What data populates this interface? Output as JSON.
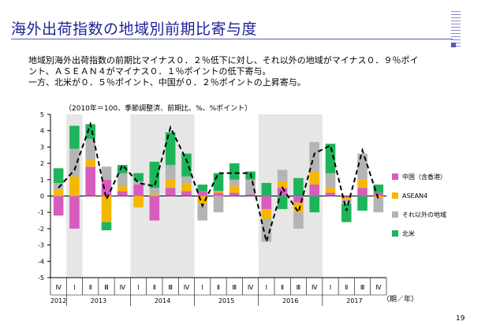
{
  "slide": {
    "title": "海外出荷指数の地域別前期比寄与度",
    "description": [
      "地域別海外出荷指数の前期比マイナス０．２％低下に対し、それ以外の地域がマイナス０．９％ポイ",
      "ント、ＡＳＥＡＮ４がマイナス０．１％ポイントの低下寄与。",
      "一方、北米が０．５％ポイント、中国が０．２％ポイントの上昇寄与。"
    ],
    "page_number": "19"
  },
  "chart_data": {
    "type": "bar",
    "stacked": true,
    "note": "（2010年＝100、季節調整済、前期比、%、%ポイント）",
    "ylim": [
      -5,
      5
    ],
    "yticks": [
      "5",
      "4",
      "3",
      "2",
      "1",
      "0",
      "-1",
      "-2",
      "-3",
      "-4",
      "-5"
    ],
    "categories": [
      "Ⅳ",
      "Ⅰ",
      "Ⅱ",
      "Ⅲ",
      "Ⅳ",
      "Ⅰ",
      "Ⅱ",
      "Ⅲ",
      "Ⅳ",
      "Ⅰ",
      "Ⅱ",
      "Ⅲ",
      "Ⅳ",
      "Ⅰ",
      "Ⅱ",
      "Ⅲ",
      "Ⅳ",
      "Ⅰ",
      "Ⅱ",
      "Ⅲ",
      "Ⅳ"
    ],
    "year_labels": [
      {
        "label": "2012",
        "start": 0,
        "end": 0
      },
      {
        "label": "2013",
        "start": 1,
        "end": 4
      },
      {
        "label": "2014",
        "start": 5,
        "end": 8
      },
      {
        "label": "2015",
        "start": 9,
        "end": 12
      },
      {
        "label": "2016",
        "start": 13,
        "end": 16
      },
      {
        "label": "2017",
        "start": 17,
        "end": 20
      }
    ],
    "shaded_ranges": [
      [
        1,
        1
      ],
      [
        5,
        8
      ],
      [
        13,
        16
      ]
    ],
    "x_unit": "（期／年）",
    "series": [
      {
        "name": "中国（含香港）",
        "color": "#d65cbe",
        "values": [
          -1.2,
          -2.0,
          1.8,
          1.0,
          0.3,
          0.7,
          -1.5,
          0.5,
          0.3,
          0.3,
          0.2,
          0.2,
          0.1,
          -0.8,
          0.5,
          -0.4,
          0.7,
          0.2,
          -0.1,
          0.5,
          0.2
        ]
      },
      {
        "name": "ASEAN4",
        "color": "#f5b800",
        "values": [
          0.4,
          1.2,
          0.4,
          -1.6,
          0.3,
          -0.7,
          0.1,
          0.5,
          0.5,
          -0.5,
          0.1,
          0.4,
          0.0,
          -0.6,
          0.4,
          -0.6,
          0.8,
          0.3,
          -0.1,
          0.5,
          -0.1
        ]
      },
      {
        "name": "それ以外の地域",
        "color": "#b4b4b4",
        "values": [
          0.4,
          1.7,
          1.3,
          0.8,
          0.8,
          0.2,
          0.4,
          0.9,
          0.4,
          -1.0,
          -1.0,
          0.4,
          0.9,
          -1.4,
          0.7,
          -1.0,
          1.8,
          0.9,
          -0.3,
          1.6,
          -0.9
        ]
      },
      {
        "name": "北米",
        "color": "#1eb45a",
        "values": [
          0.9,
          1.4,
          0.9,
          -0.5,
          0.5,
          0.5,
          1.6,
          2.0,
          1.4,
          0.4,
          1.1,
          1.0,
          0.5,
          0.8,
          -0.8,
          1.1,
          -1.0,
          1.8,
          -1.1,
          -0.9,
          0.5
        ]
      }
    ],
    "total": {
      "style": "dashed",
      "color": "#000000",
      "values": [
        0.5,
        1.6,
        4.4,
        -0.2,
        1.9,
        0.8,
        0.6,
        4.2,
        2.2,
        -0.6,
        1.4,
        1.4,
        1.4,
        -2.8,
        0.5,
        -1.0,
        2.6,
        3.1,
        -0.9,
        2.8,
        -0.2
      ]
    }
  }
}
